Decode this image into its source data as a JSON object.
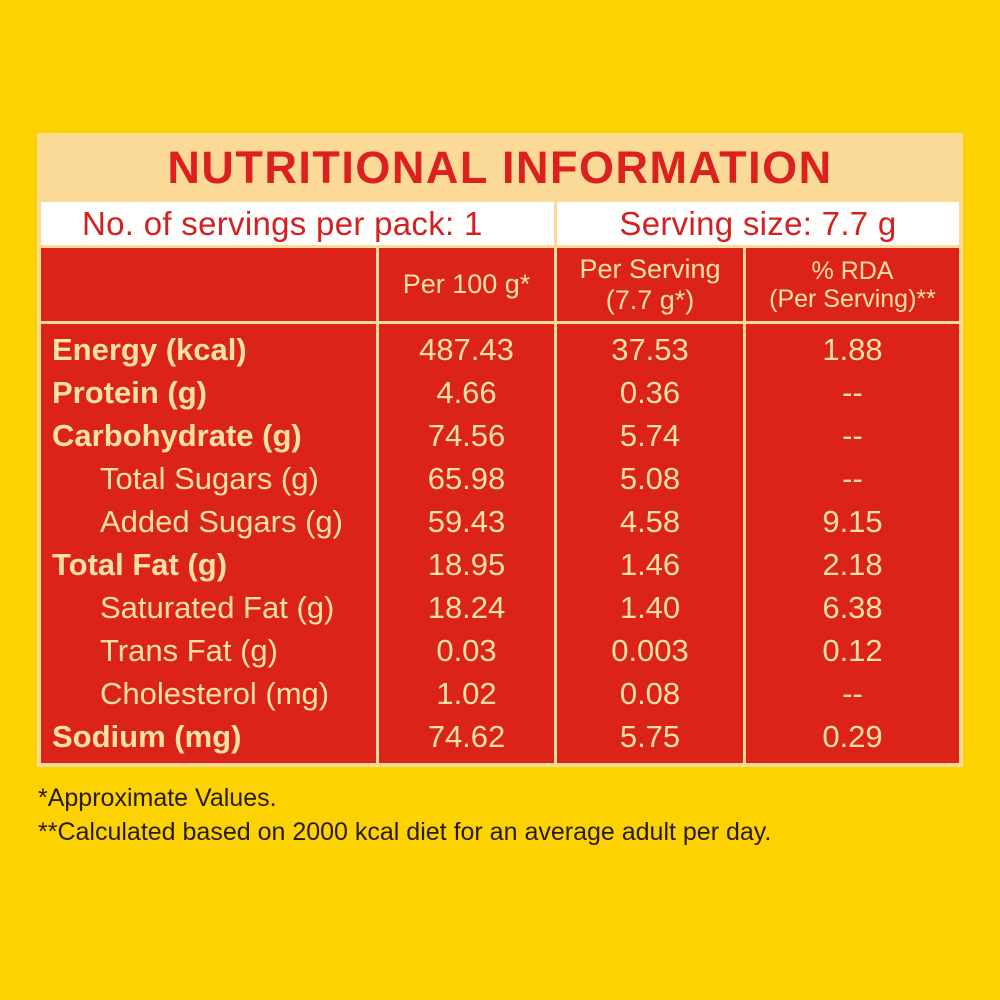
{
  "title": "NUTRITIONAL INFORMATION",
  "servings_per_pack": "No. of servings per pack: 1",
  "serving_size": "Serving size: 7.7 g",
  "headers": {
    "per_100g": "Per 100 g*",
    "per_serving_line1": "Per Serving",
    "per_serving_line2": "(7.7 g*)",
    "rda_line1": "% RDA",
    "rda_line2": "(Per Serving)**"
  },
  "rows": [
    {
      "label": "Energy (kcal)",
      "per_100g": "487.43",
      "per_serving": "37.53",
      "rda": "1.88",
      "bold": true
    },
    {
      "label": "Protein (g)",
      "per_100g": "4.66",
      "per_serving": "0.36",
      "rda": "--",
      "bold": true
    },
    {
      "label": "Carbohydrate (g)",
      "per_100g": "74.56",
      "per_serving": "5.74",
      "rda": "--",
      "bold": true
    },
    {
      "label": "Total Sugars (g)",
      "per_100g": "65.98",
      "per_serving": "5.08",
      "rda": "--",
      "bold": false
    },
    {
      "label": "Added Sugars (g)",
      "per_100g": "59.43",
      "per_serving": "4.58",
      "rda": "9.15",
      "bold": false
    },
    {
      "label": "Total Fat (g)",
      "per_100g": "18.95",
      "per_serving": "1.46",
      "rda": "2.18",
      "bold": true
    },
    {
      "label": "Saturated Fat (g)",
      "per_100g": "18.24",
      "per_serving": "1.40",
      "rda": "6.38",
      "bold": false
    },
    {
      "label": "Trans Fat (g)",
      "per_100g": "0.03",
      "per_serving": "0.003",
      "rda": "0.12",
      "bold": false
    },
    {
      "label": "Cholesterol (mg)",
      "per_100g": "1.02",
      "per_serving": "0.08",
      "rda": "--",
      "bold": false
    },
    {
      "label": "Sodium (mg)",
      "per_100g": "74.62",
      "per_serving": "5.75",
      "rda": "0.29",
      "bold": true
    }
  ],
  "footnotes": {
    "approx": "*Approximate Values.",
    "calc": "**Calculated based on 2000 kcal diet for an average adult per day."
  },
  "colors": {
    "background": "#fcd200",
    "panel": "#fbd996",
    "red": "#dc2319",
    "text_cream": "#fbe0a8"
  }
}
